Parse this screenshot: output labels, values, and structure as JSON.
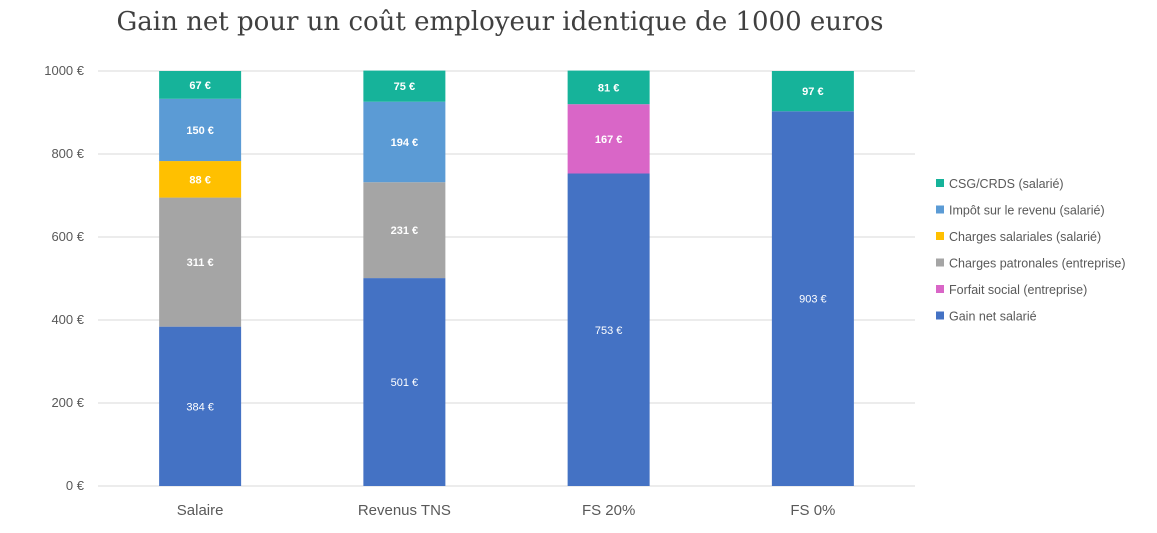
{
  "chart_data": {
    "type": "bar",
    "stacked": true,
    "title": "Gain net pour un coût employeur identique de 1000 euros",
    "categories": [
      "Salaire",
      "Revenus TNS",
      "FS 20%",
      "FS 0%"
    ],
    "ylim": [
      0,
      1000
    ],
    "y_ticks": [
      0,
      200,
      400,
      600,
      800,
      1000
    ],
    "y_tick_labels": [
      "0 €",
      "200 €",
      "400 €",
      "600 €",
      "800 €",
      "1000 €"
    ],
    "grid": true,
    "legend_position": "right",
    "series": [
      {
        "name": "Gain net salarié",
        "color": "#4472C4",
        "values": [
          384,
          501,
          753,
          903
        ],
        "labels": [
          "384 €",
          "501 €",
          "753 €",
          "903 €"
        ]
      },
      {
        "name": "Forfait social (entreprise)",
        "color": "#D966C7",
        "values": [
          0,
          0,
          167,
          0
        ],
        "labels": [
          "",
          "",
          "167 €",
          ""
        ]
      },
      {
        "name": "Charges patronales (entreprise)",
        "color": "#A5A5A5",
        "values": [
          311,
          231,
          0,
          0
        ],
        "labels": [
          "311 €",
          "231 €",
          "",
          ""
        ]
      },
      {
        "name": "Charges salariales (salarié)",
        "color": "#FFC000",
        "values": [
          88,
          0,
          0,
          0
        ],
        "labels": [
          "88 €",
          "",
          "",
          ""
        ]
      },
      {
        "name": "Impôt sur le revenu (salarié)",
        "color": "#5B9BD5",
        "values": [
          150,
          194,
          0,
          0
        ],
        "labels": [
          "150 €",
          "194 €",
          "",
          ""
        ]
      },
      {
        "name": "CSG/CRDS (salarié)",
        "color": "#16B39A",
        "values": [
          67,
          75,
          81,
          97
        ],
        "labels": [
          "67 €",
          "75 €",
          "81 €",
          "97 €"
        ]
      }
    ],
    "legend_order": [
      "CSG/CRDS (salarié)",
      "Impôt sur le revenu (salarié)",
      "Charges salariales (salarié)",
      "Charges patronales (entreprise)",
      "Forfait social (entreprise)",
      "Gain net salarié"
    ]
  }
}
